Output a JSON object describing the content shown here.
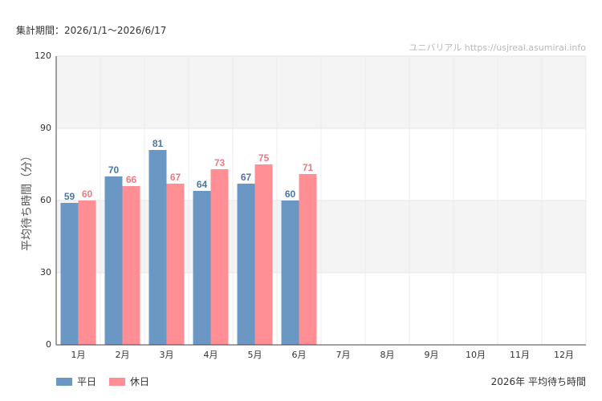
{
  "header": {
    "period": "集計期間：2026/1/1～2026/6/17",
    "watermark": "ユニバリアル  https://usjreal.asumirai.info"
  },
  "footer": {
    "title": "2026年 平均待ち時間"
  },
  "chart_data": {
    "type": "bar",
    "title": "2026年 平均待ち時間",
    "ylabel": "平均待ち時間（分）",
    "xlabel": "",
    "ylim": [
      0,
      120
    ],
    "yticks": [
      0,
      30,
      60,
      90,
      120
    ],
    "categories": [
      "1月",
      "2月",
      "3月",
      "4月",
      "5月",
      "6月",
      "7月",
      "8月",
      "9月",
      "10月",
      "11月",
      "12月"
    ],
    "series": [
      {
        "name": "平日",
        "color": "#6a97c4",
        "labelColor": "#4a76a8",
        "values": [
          59,
          70,
          81,
          64,
          67,
          60,
          null,
          null,
          null,
          null,
          null,
          null
        ]
      },
      {
        "name": "休日",
        "color": "#ff8f94",
        "labelColor": "#f07a80",
        "values": [
          60,
          66,
          67,
          73,
          75,
          71,
          null,
          null,
          null,
          null,
          null,
          null
        ]
      }
    ],
    "legend": "bottom-left",
    "grid": true
  }
}
